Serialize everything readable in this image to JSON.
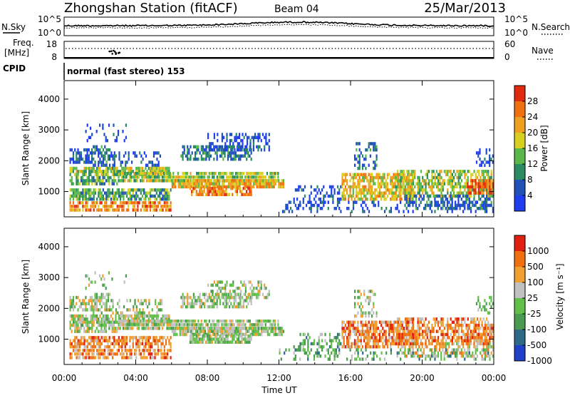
{
  "header": {
    "station": "Zhongshan Station (fitACF)",
    "beam": "Beam 04",
    "date": "25/Mar/2013"
  },
  "noise_panel": {
    "left_label": "N.Sky",
    "left_ticks": [
      "10^5",
      "10^0"
    ],
    "right_label": "N.Search",
    "right_ticks": [
      "10^5",
      "10^0"
    ]
  },
  "freq_panel": {
    "label_line1": "Freq.",
    "label_line2": "[MHz]",
    "left_ticks": [
      "18",
      "8"
    ],
    "right_label": "Nave",
    "right_ticks": [
      "60",
      "0"
    ]
  },
  "cpid": {
    "label": "CPID",
    "mode_text": "normal (fast stereo) 153"
  },
  "power_panel": {
    "ylabel": "Slant Range [km]",
    "yticks": [
      "1000",
      "2000",
      "3000",
      "4000"
    ],
    "colorbar_label": "Power [dB]",
    "colorbar_ticks": [
      "4",
      "8",
      "12",
      "16",
      "20",
      "24",
      "28"
    ],
    "colors": [
      "#1f3ef0",
      "#2050b8",
      "#2a8a60",
      "#5ab84a",
      "#d8d020",
      "#f0a020",
      "#f07010",
      "#e02a10"
    ]
  },
  "velocity_panel": {
    "ylabel": "Slant Range [km]",
    "yticks": [
      "1000",
      "2000",
      "3000",
      "4000"
    ],
    "colorbar_label": "Velocity [m s⁻¹]",
    "colorbar_ticks": [
      "1000",
      "500",
      "100",
      "25",
      "-25",
      "-100",
      "-500",
      "-1000"
    ],
    "colors": [
      "#1f40c8",
      "#2e6a88",
      "#4a9a50",
      "#62c04a",
      "#c0c0c0",
      "#f0a030",
      "#f07010",
      "#e02010"
    ]
  },
  "x_axis": {
    "label": "Time UT",
    "ticks": [
      "00:00",
      "04:00",
      "08:00",
      "12:00",
      "16:00",
      "20:00",
      "00:00"
    ]
  }
}
